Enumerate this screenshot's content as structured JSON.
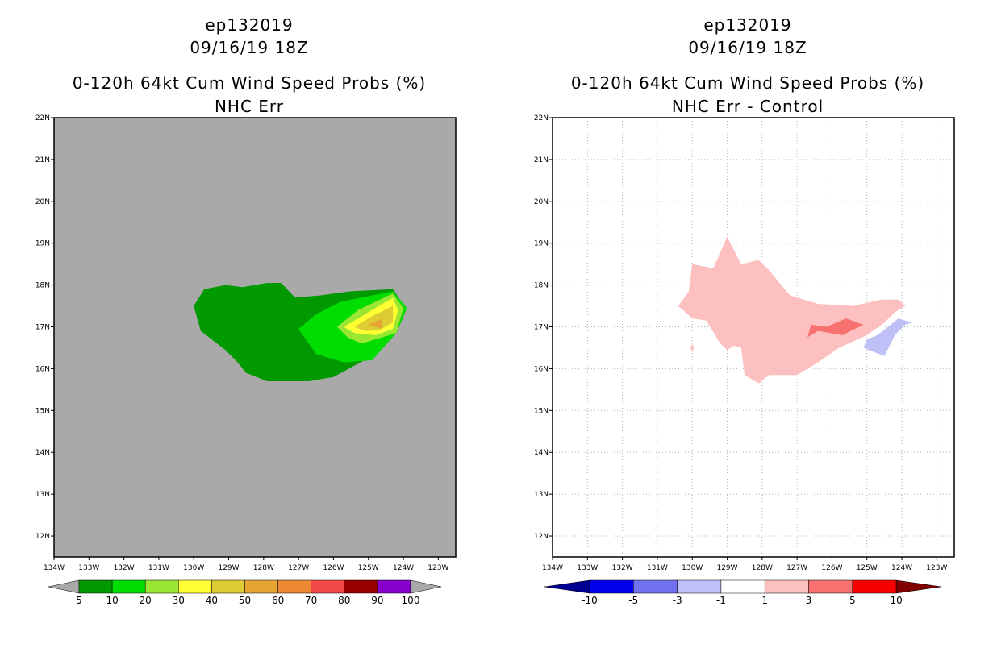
{
  "chart_data": [
    {
      "type": "heatmap",
      "title_lines": [
        "ep132019",
        "09/16/19 18Z",
        "0-120h 64kt Cum Wind Speed Probs (%)",
        "NHC Err"
      ],
      "x_ticks": [
        "134W",
        "133W",
        "132W",
        "131W",
        "130W",
        "129W",
        "128W",
        "127W",
        "126W",
        "125W",
        "124W",
        "123W"
      ],
      "y_ticks": [
        "12N",
        "13N",
        "14N",
        "15N",
        "16N",
        "17N",
        "18N",
        "19N",
        "20N",
        "21N",
        "22N"
      ],
      "xlim": [
        -134,
        -122.5
      ],
      "ylim": [
        11.5,
        22
      ],
      "grid": false,
      "background_color": "#a9a9a9",
      "colorbar": {
        "labels": [
          "5",
          "10",
          "20",
          "30",
          "40",
          "50",
          "60",
          "70",
          "80",
          "90",
          "100"
        ],
        "colors": [
          "#009900",
          "#00dd00",
          "#99e633",
          "#ffff33",
          "#ddcc33",
          "#e6a532",
          "#ee8833",
          "#f34848",
          "#990000",
          "#8800cc"
        ],
        "low_color": "#a9a9a9",
        "high_color": "#a9a9a9"
      },
      "contours": [
        {
          "level": "5-10",
          "color": "#009900",
          "polygon": [
            [
              -130.0,
              17.5
            ],
            [
              -129.7,
              17.9
            ],
            [
              -129.1,
              18.0
            ],
            [
              -128.6,
              17.95
            ],
            [
              -127.9,
              18.05
            ],
            [
              -127.5,
              18.05
            ],
            [
              -127.1,
              17.7
            ],
            [
              -126.4,
              17.75
            ],
            [
              -125.5,
              17.85
            ],
            [
              -124.3,
              17.9
            ],
            [
              -124.1,
              17.65
            ],
            [
              -123.9,
              17.45
            ],
            [
              -124.2,
              16.85
            ],
            [
              -124.9,
              16.3
            ],
            [
              -126.0,
              15.8
            ],
            [
              -126.7,
              15.7
            ],
            [
              -127.6,
              15.7
            ],
            [
              -127.9,
              15.7
            ],
            [
              -128.5,
              15.9
            ],
            [
              -128.8,
              16.2
            ],
            [
              -129.1,
              16.45
            ],
            [
              -129.8,
              16.9
            ]
          ]
        },
        {
          "level": "10-20",
          "color": "#00dd00",
          "polygon": [
            [
              -127.0,
              16.95
            ],
            [
              -126.5,
              17.3
            ],
            [
              -125.8,
              17.6
            ],
            [
              -124.3,
              17.85
            ],
            [
              -123.9,
              17.45
            ],
            [
              -124.2,
              16.85
            ],
            [
              -124.9,
              16.2
            ],
            [
              -125.7,
              16.15
            ],
            [
              -126.5,
              16.35
            ]
          ]
        },
        {
          "level": "20-30",
          "color": "#99e633",
          "polygon": [
            [
              -125.9,
              17.0
            ],
            [
              -125.3,
              17.4
            ],
            [
              -124.3,
              17.8
            ],
            [
              -124.0,
              17.45
            ],
            [
              -124.2,
              16.85
            ],
            [
              -125.2,
              16.6
            ],
            [
              -125.6,
              16.75
            ]
          ]
        },
        {
          "level": "30-40",
          "color": "#ffff33",
          "polygon": [
            [
              -125.7,
              17.0
            ],
            [
              -125.1,
              17.3
            ],
            [
              -124.3,
              17.7
            ],
            [
              -124.15,
              17.4
            ],
            [
              -124.3,
              16.95
            ],
            [
              -124.8,
              16.8
            ],
            [
              -125.4,
              16.85
            ]
          ]
        },
        {
          "level": "40-50",
          "color": "#ddcc33",
          "polygon": [
            [
              -125.4,
              17.0
            ],
            [
              -124.9,
              17.25
            ],
            [
              -124.3,
              17.5
            ],
            [
              -124.3,
              17.1
            ],
            [
              -124.7,
              16.92
            ],
            [
              -125.1,
              16.9
            ]
          ]
        },
        {
          "level": "50-60",
          "color": "#e6a532",
          "polygon": [
            [
              -125.0,
              17.05
            ],
            [
              -124.6,
              17.2
            ],
            [
              -124.6,
              16.95
            ]
          ]
        }
      ]
    },
    {
      "type": "heatmap",
      "title_lines": [
        "ep132019",
        "09/16/19 18Z",
        "0-120h 64kt Cum Wind Speed Probs (%)",
        "NHC Err - Control"
      ],
      "x_ticks": [
        "134W",
        "133W",
        "132W",
        "131W",
        "130W",
        "129W",
        "128W",
        "127W",
        "126W",
        "125W",
        "124W",
        "123W"
      ],
      "y_ticks": [
        "12N",
        "13N",
        "14N",
        "15N",
        "16N",
        "17N",
        "18N",
        "19N",
        "20N",
        "21N",
        "22N"
      ],
      "xlim": [
        -134,
        -122.5
      ],
      "ylim": [
        11.5,
        22
      ],
      "grid": true,
      "background_color": "#ffffff",
      "colorbar": {
        "labels": [
          "-10",
          "-5",
          "-3",
          "-1",
          "1",
          "3",
          "5",
          "10"
        ],
        "colors": [
          "#0000ee",
          "#7070f0",
          "#c0c0f8",
          "#ffffff",
          "#fcc0c0",
          "#f87070",
          "#f80000"
        ],
        "low_color": "#000090",
        "high_color": "#800000"
      },
      "contours": [
        {
          "level": "1-3",
          "color": "#fcc0c0",
          "polygon": [
            [
              -130.4,
              17.5
            ],
            [
              -130.1,
              17.85
            ],
            [
              -130.0,
              18.5
            ],
            [
              -129.4,
              18.4
            ],
            [
              -129.0,
              19.15
            ],
            [
              -128.6,
              18.5
            ],
            [
              -128.1,
              18.6
            ],
            [
              -127.8,
              18.35
            ],
            [
              -127.2,
              17.75
            ],
            [
              -126.4,
              17.55
            ],
            [
              -125.4,
              17.5
            ],
            [
              -124.6,
              17.65
            ],
            [
              -124.1,
              17.65
            ],
            [
              -123.9,
              17.5
            ],
            [
              -124.2,
              17.35
            ],
            [
              -124.5,
              17.1
            ],
            [
              -125.0,
              16.8
            ],
            [
              -125.8,
              16.5
            ],
            [
              -126.4,
              16.15
            ],
            [
              -127.0,
              15.85
            ],
            [
              -127.8,
              15.85
            ],
            [
              -128.1,
              15.65
            ],
            [
              -128.5,
              15.85
            ],
            [
              -128.6,
              16.5
            ],
            [
              -128.8,
              16.55
            ],
            [
              -129.0,
              16.45
            ],
            [
              -129.2,
              16.6
            ],
            [
              -129.6,
              17.15
            ],
            [
              -130.0,
              17.2
            ]
          ]
        },
        {
          "level": "1-3",
          "color": "#fcc0c0",
          "polygon": [
            [
              -130.0,
              16.6
            ],
            [
              -129.95,
              16.5
            ],
            [
              -130.0,
              16.4
            ],
            [
              -130.05,
              16.5
            ]
          ]
        },
        {
          "level": "3-5",
          "color": "#f87070",
          "polygon": [
            [
              -126.7,
              16.75
            ],
            [
              -126.6,
              17.05
            ],
            [
              -126.15,
              17.0
            ],
            [
              -125.6,
              17.2
            ],
            [
              -125.1,
              17.05
            ],
            [
              -125.7,
              16.8
            ],
            [
              -126.4,
              16.9
            ]
          ]
        },
        {
          "level": "-3 to -1",
          "color": "#c0c0f8",
          "polygon": [
            [
              -125.1,
              16.5
            ],
            [
              -124.5,
              16.3
            ],
            [
              -124.2,
              16.8
            ],
            [
              -123.9,
              17.05
            ],
            [
              -123.7,
              17.1
            ],
            [
              -124.1,
              17.2
            ],
            [
              -124.7,
              16.8
            ],
            [
              -125.0,
              16.7
            ]
          ]
        }
      ]
    }
  ]
}
